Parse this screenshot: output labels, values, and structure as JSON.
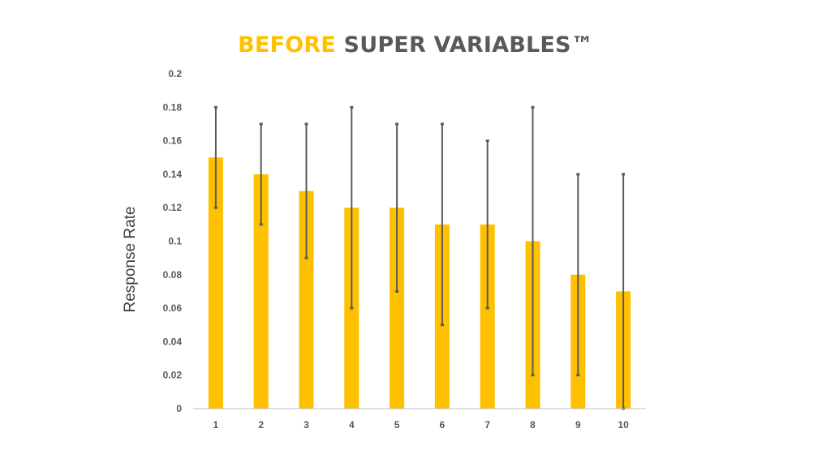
{
  "title": {
    "accent": "BEFORE",
    "rest": "SUPER VARIABLES™"
  },
  "colors": {
    "accent": "#FFC000",
    "title_rest": "#595959",
    "bar": "#FFC000",
    "error_bar": "#595959",
    "axis": "#BFBFBF",
    "tick_text": "#595959"
  },
  "chart_data": {
    "type": "bar",
    "title": "BEFORE SUPER VARIABLES™",
    "xlabel": "",
    "ylabel": "Response Rate",
    "categories": [
      "1",
      "2",
      "3",
      "4",
      "5",
      "6",
      "7",
      "8",
      "9",
      "10"
    ],
    "values": [
      0.15,
      0.14,
      0.13,
      0.12,
      0.12,
      0.11,
      0.11,
      0.1,
      0.08,
      0.07
    ],
    "error_bars": {
      "upper": [
        0.18,
        0.17,
        0.17,
        0.18,
        0.17,
        0.17,
        0.16,
        0.18,
        0.14,
        0.14
      ],
      "lower": [
        0.12,
        0.11,
        0.09,
        0.06,
        0.07,
        0.05,
        0.06,
        0.02,
        0.02,
        0.0
      ]
    },
    "ylim": [
      0,
      0.2
    ],
    "yticks": [
      "0",
      "0.02",
      "0.04",
      "0.06",
      "0.08",
      "0.1",
      "0.12",
      "0.14",
      "0.16",
      "0.18",
      "0.2"
    ],
    "grid": false,
    "legend": "none"
  }
}
